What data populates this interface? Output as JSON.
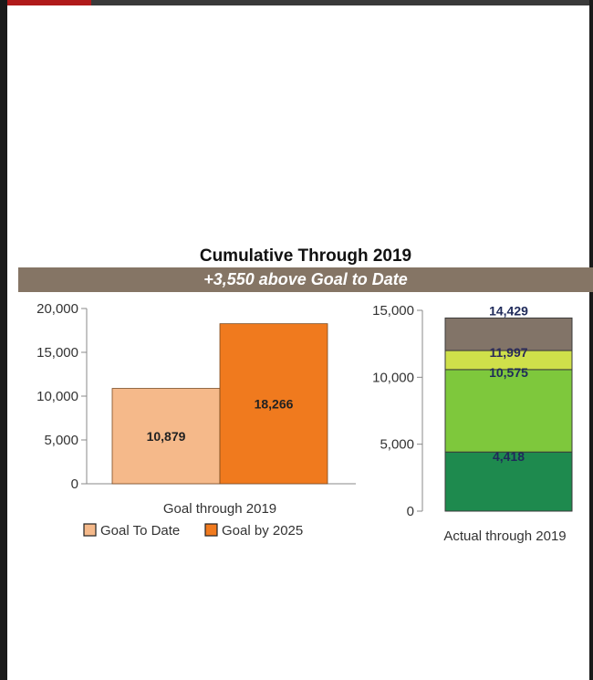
{
  "header": {
    "title": "Cumulative Through 2019",
    "subtitle": "+3,550 above Goal to Date"
  },
  "chart_data": [
    {
      "type": "bar",
      "categories": [
        "Goal through 2019"
      ],
      "series": [
        {
          "name": "Goal To Date",
          "values": [
            10879
          ],
          "label": "10,879",
          "color": "#f5b98a"
        },
        {
          "name": "Goal by 2025",
          "values": [
            18266
          ],
          "label": "18,266",
          "color": "#f07a1e"
        }
      ],
      "ylim": [
        0,
        20000
      ],
      "yticks": [
        0,
        5000,
        10000,
        15000,
        20000
      ],
      "ytick_labels": [
        "0",
        "5,000",
        "10,000",
        "15,000",
        "20,000"
      ],
      "xlabel": "Goal through 2019",
      "legend": "bottom"
    },
    {
      "type": "bar",
      "stacked": true,
      "categories": [
        "Actual through 2019"
      ],
      "segments": [
        {
          "top": 4418,
          "label": "4,418",
          "color": "#1e8a4e"
        },
        {
          "top": 10575,
          "label": "10,575",
          "color": "#7ec83c"
        },
        {
          "top": 11997,
          "label": "11,997",
          "color": "#cfe04a"
        },
        {
          "top": 14429,
          "label": "14,429",
          "color": "#827468"
        }
      ],
      "ylim": [
        0,
        15000
      ],
      "yticks": [
        0,
        5000,
        10000,
        15000
      ],
      "ytick_labels": [
        "0",
        "5,000",
        "10,000",
        "15,000"
      ],
      "xlabel": "Actual through 2019"
    }
  ]
}
